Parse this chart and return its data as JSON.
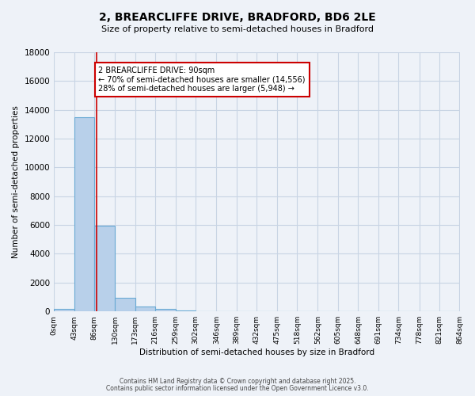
{
  "title_line1": "2, BREARCLIFFE DRIVE, BRADFORD, BD6 2LE",
  "title_line2": "Size of property relative to semi-detached houses in Bradford",
  "xlabel": "Distribution of semi-detached houses by size in Bradford",
  "ylabel": "Number of semi-detached properties",
  "bar_values": [
    200,
    13500,
    5950,
    950,
    350,
    150,
    50,
    0,
    0,
    0,
    0,
    0,
    0,
    0,
    0,
    0,
    0,
    0,
    0,
    0
  ],
  "bin_edges": [
    0,
    43,
    86,
    130,
    173,
    216,
    259,
    302,
    346,
    389,
    432,
    475,
    518,
    562,
    605,
    648,
    691,
    734,
    778,
    821,
    864
  ],
  "tick_labels": [
    "0sqm",
    "43sqm",
    "86sqm",
    "130sqm",
    "173sqm",
    "216sqm",
    "259sqm",
    "302sqm",
    "346sqm",
    "389sqm",
    "432sqm",
    "475sqm",
    "518sqm",
    "562sqm",
    "605sqm",
    "648sqm",
    "691sqm",
    "734sqm",
    "778sqm",
    "821sqm",
    "864sqm"
  ],
  "bar_color": "#b8d0ea",
  "bar_edgecolor": "#6aaad4",
  "grid_color": "#c8d4e4",
  "background_color": "#eef2f8",
  "red_line_x": 90,
  "annotation_title": "2 BREARCLIFFE DRIVE: 90sqm",
  "annotation_line1": "← 70% of semi-detached houses are smaller (14,556)",
  "annotation_line2": "28% of semi-detached houses are larger (5,948) →",
  "annotation_box_color": "#ffffff",
  "annotation_border_color": "#cc0000",
  "ylim": [
    0,
    18000
  ],
  "yticks": [
    0,
    2000,
    4000,
    6000,
    8000,
    10000,
    12000,
    14000,
    16000,
    18000
  ],
  "footer_line1": "Contains HM Land Registry data © Crown copyright and database right 2025.",
  "footer_line2": "Contains public sector information licensed under the Open Government Licence v3.0."
}
